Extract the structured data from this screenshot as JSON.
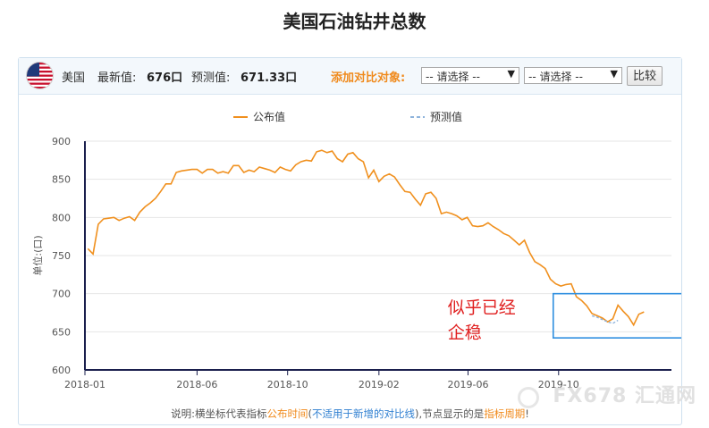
{
  "page_title": "美国石油钻井总数",
  "toolbar": {
    "country": "美国",
    "latest_label": "最新值:",
    "latest_value": "676口",
    "forecast_label": "预测值:",
    "forecast_value": "671.33口",
    "compare_label": "添加对比对象:",
    "select1": "-- 请选择 --",
    "select2": "-- 请选择 --",
    "compare_button": "比较"
  },
  "footer_note": {
    "part1": "说明:横坐标代表指标",
    "part2": "公布时间",
    "part3": "(",
    "part4": "不适用于新增的对比线",
    "part5": "),节点显示的是",
    "part6": "指标周期",
    "part7": "!"
  },
  "annotation": {
    "line1": "似乎已经",
    "line2": "企稳"
  },
  "watermark": "FX678 汇通网",
  "colors": {
    "published": "#f0901e",
    "forecast": "#8fb4dc",
    "annotation": "#e02020",
    "box": "#2f8fe0"
  },
  "chart_data": {
    "type": "line",
    "ylabel": "单位:(口)",
    "ylim": [
      600,
      900
    ],
    "yticks": [
      600,
      650,
      700,
      750,
      800,
      850,
      900
    ],
    "xlim": [
      "2018-01-01",
      "2020-03-01"
    ],
    "xticks": [
      "2018-01",
      "2018-06",
      "2018-10",
      "2019-02",
      "2019-06",
      "2019-10"
    ],
    "legend": [
      "公布值",
      "预测值"
    ],
    "legend_position": "top",
    "series": [
      {
        "name": "公布值",
        "values": [
          [
            "2018-01-05",
            759
          ],
          [
            "2018-01-12",
            752
          ],
          [
            "2018-01-19",
            791
          ],
          [
            "2018-01-26",
            798
          ],
          [
            "2018-02-02",
            799
          ],
          [
            "2018-02-09",
            800
          ],
          [
            "2018-02-16",
            796
          ],
          [
            "2018-02-23",
            799
          ],
          [
            "2018-03-02",
            801
          ],
          [
            "2018-03-09",
            796
          ],
          [
            "2018-03-16",
            807
          ],
          [
            "2018-03-23",
            814
          ],
          [
            "2018-03-30",
            819
          ],
          [
            "2018-04-06",
            825
          ],
          [
            "2018-04-13",
            834
          ],
          [
            "2018-04-20",
            844
          ],
          [
            "2018-04-27",
            844
          ],
          [
            "2018-05-04",
            859
          ],
          [
            "2018-05-11",
            861
          ],
          [
            "2018-05-18",
            862
          ],
          [
            "2018-05-25",
            863
          ],
          [
            "2018-06-01",
            863
          ],
          [
            "2018-06-08",
            858
          ],
          [
            "2018-06-15",
            863
          ],
          [
            "2018-06-22",
            863
          ],
          [
            "2018-06-29",
            858
          ],
          [
            "2018-07-06",
            860
          ],
          [
            "2018-07-13",
            858
          ],
          [
            "2018-07-20",
            868
          ],
          [
            "2018-07-27",
            868
          ],
          [
            "2018-08-03",
            859
          ],
          [
            "2018-08-10",
            862
          ],
          [
            "2018-08-17",
            860
          ],
          [
            "2018-08-24",
            866
          ],
          [
            "2018-08-31",
            864
          ],
          [
            "2018-09-07",
            862
          ],
          [
            "2018-09-14",
            859
          ],
          [
            "2018-09-21",
            866
          ],
          [
            "2018-09-28",
            863
          ],
          [
            "2018-10-05",
            861
          ],
          [
            "2018-10-12",
            869
          ],
          [
            "2018-10-19",
            873
          ],
          [
            "2018-10-26",
            875
          ],
          [
            "2018-11-02",
            874
          ],
          [
            "2018-11-09",
            886
          ],
          [
            "2018-11-16",
            888
          ],
          [
            "2018-11-23",
            885
          ],
          [
            "2018-11-30",
            887
          ],
          [
            "2018-12-07",
            877
          ],
          [
            "2018-12-14",
            873
          ],
          [
            "2018-12-21",
            883
          ],
          [
            "2018-12-28",
            885
          ],
          [
            "2019-01-04",
            877
          ],
          [
            "2019-01-11",
            873
          ],
          [
            "2019-01-18",
            852
          ],
          [
            "2019-01-25",
            862
          ],
          [
            "2019-02-01",
            847
          ],
          [
            "2019-02-08",
            854
          ],
          [
            "2019-02-15",
            857
          ],
          [
            "2019-02-22",
            853
          ],
          [
            "2019-03-01",
            843
          ],
          [
            "2019-03-08",
            834
          ],
          [
            "2019-03-15",
            833
          ],
          [
            "2019-03-22",
            824
          ],
          [
            "2019-03-29",
            816
          ],
          [
            "2019-04-05",
            831
          ],
          [
            "2019-04-12",
            833
          ],
          [
            "2019-04-19",
            825
          ],
          [
            "2019-04-26",
            805
          ],
          [
            "2019-05-03",
            807
          ],
          [
            "2019-05-10",
            805
          ],
          [
            "2019-05-17",
            802
          ],
          [
            "2019-05-24",
            797
          ],
          [
            "2019-05-31",
            800
          ],
          [
            "2019-06-07",
            789
          ],
          [
            "2019-06-14",
            788
          ],
          [
            "2019-06-21",
            789
          ],
          [
            "2019-06-28",
            793
          ],
          [
            "2019-07-05",
            788
          ],
          [
            "2019-07-12",
            784
          ],
          [
            "2019-07-19",
            779
          ],
          [
            "2019-07-26",
            776
          ],
          [
            "2019-08-02",
            770
          ],
          [
            "2019-08-09",
            764
          ],
          [
            "2019-08-16",
            770
          ],
          [
            "2019-08-23",
            754
          ],
          [
            "2019-08-30",
            742
          ],
          [
            "2019-09-06",
            738
          ],
          [
            "2019-09-13",
            733
          ],
          [
            "2019-09-20",
            719
          ],
          [
            "2019-09-27",
            713
          ],
          [
            "2019-10-04",
            710
          ],
          [
            "2019-10-11",
            712
          ],
          [
            "2019-10-18",
            713
          ],
          [
            "2019-10-25",
            696
          ],
          [
            "2019-11-01",
            691
          ],
          [
            "2019-11-08",
            684
          ],
          [
            "2019-11-15",
            674
          ],
          [
            "2019-11-22",
            671
          ],
          [
            "2019-11-29",
            668
          ],
          [
            "2019-12-06",
            663
          ],
          [
            "2019-12-13",
            667
          ],
          [
            "2019-12-20",
            685
          ],
          [
            "2019-12-27",
            677
          ],
          [
            "2020-01-03",
            670
          ],
          [
            "2020-01-10",
            659
          ],
          [
            "2020-01-17",
            673
          ],
          [
            "2020-01-24",
            676
          ]
        ]
      },
      {
        "name": "预测值",
        "values": [
          [
            "2019-11-15",
            671
          ],
          [
            "2019-11-22",
            669
          ],
          [
            "2019-11-29",
            666
          ],
          [
            "2019-12-06",
            663
          ],
          [
            "2019-12-13",
            661
          ],
          [
            "2019-12-20",
            665
          ]
        ]
      }
    ]
  }
}
